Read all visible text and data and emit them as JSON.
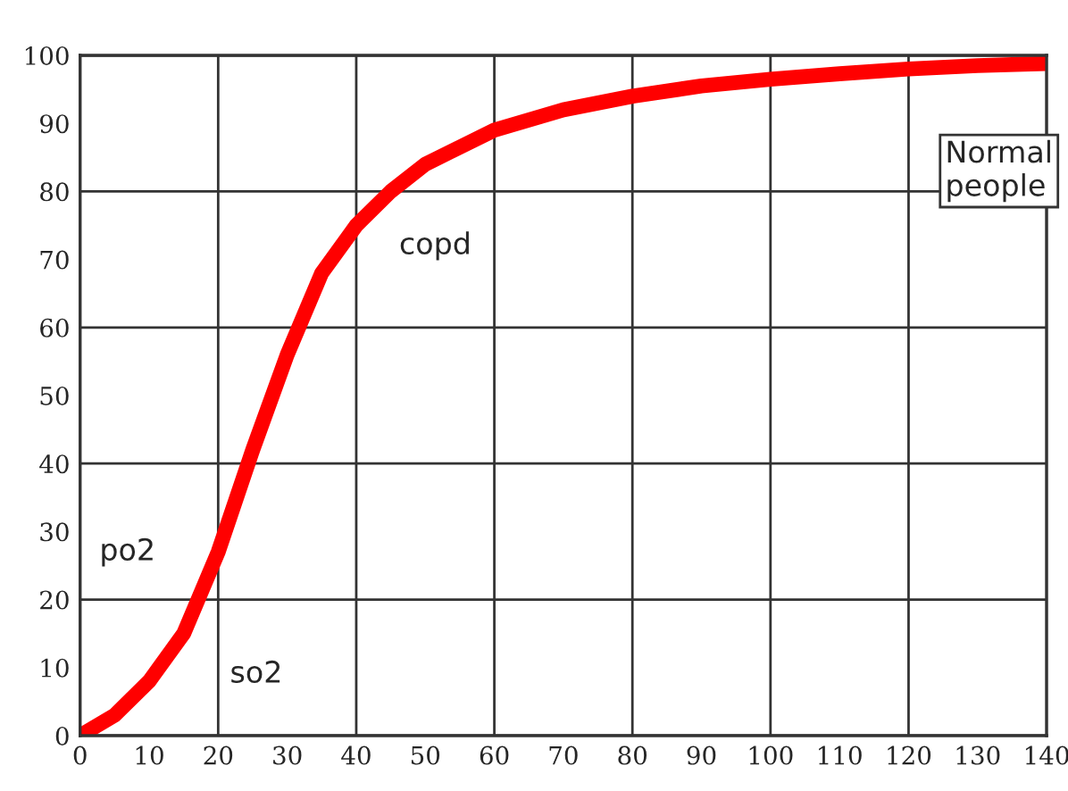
{
  "chart_data": {
    "type": "line",
    "x": [
      0,
      5,
      10,
      15,
      20,
      25,
      30,
      35,
      40,
      45,
      50,
      60,
      70,
      80,
      90,
      100,
      110,
      120,
      130,
      140
    ],
    "series": [
      {
        "color": "#ff0000",
        "values": [
          0,
          3,
          8,
          15,
          27,
          42,
          56,
          68,
          75,
          80,
          84,
          89,
          92,
          94,
          95.5,
          96.5,
          97.3,
          98,
          98.5,
          98.8
        ]
      }
    ],
    "xlim": [
      0,
      140
    ],
    "ylim": [
      0,
      100
    ],
    "xticks": [
      0,
      10,
      20,
      30,
      40,
      50,
      60,
      70,
      80,
      90,
      100,
      110,
      120,
      130,
      140
    ],
    "yticks": [
      0,
      10,
      20,
      30,
      40,
      50,
      60,
      70,
      80,
      90,
      100
    ],
    "grid": true,
    "marker": "none",
    "line_style": "solid",
    "legend": false,
    "annotations": [
      "po2",
      "so2",
      "copd",
      "Normal\npeople"
    ]
  }
}
